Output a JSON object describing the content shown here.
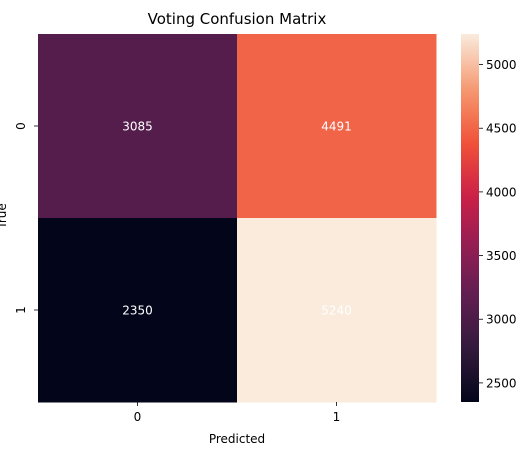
{
  "chart_data": {
    "type": "heatmap",
    "title": "Voting Confusion Matrix",
    "xlabel": "Predicted",
    "ylabel": "True",
    "x_categories": [
      "0",
      "1"
    ],
    "y_categories": [
      "0",
      "1"
    ],
    "values": [
      [
        3085,
        4491
      ],
      [
        2350,
        5240
      ]
    ],
    "colorbar": {
      "min": 2350,
      "max": 5240,
      "ticks": [
        2500,
        3000,
        3500,
        4000,
        4500,
        5000
      ],
      "colormap": "rocket"
    },
    "annotation_color": "#ffffff"
  }
}
